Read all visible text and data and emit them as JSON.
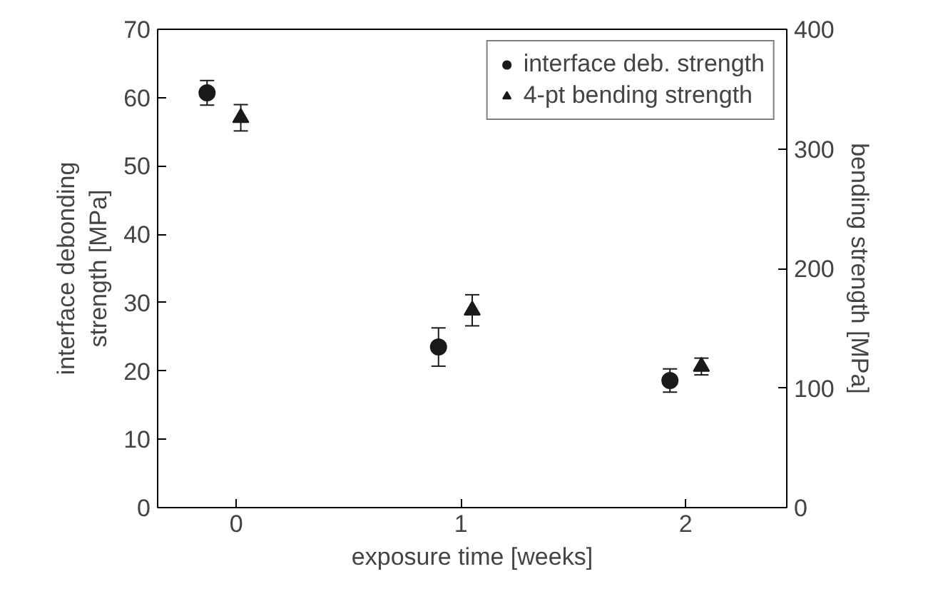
{
  "chart_data": {
    "type": "scatter",
    "xlabel": "exposure time [weeks]",
    "ylabel": "interface debonding\nstrength [MPa]",
    "y2label": "bending strength [MPa]",
    "xlim": [
      -0.35,
      2.45
    ],
    "xticks": [
      0,
      1,
      2
    ],
    "ylim": [
      0,
      70
    ],
    "yticks": [
      0,
      10,
      20,
      30,
      40,
      50,
      60,
      70
    ],
    "y2lim": [
      0,
      400
    ],
    "y2ticks": [
      0,
      100,
      200,
      300,
      400
    ],
    "legend": "top right",
    "grid": false,
    "series": [
      {
        "name": "interface deb. strength",
        "color": "#1a1a1a",
        "marker": "circle",
        "x": [
          -0.13,
          0.9,
          1.93
        ],
        "values": [
          60.7,
          23.5,
          18.6
        ],
        "errors": [
          1.8,
          2.8,
          1.7
        ]
      },
      {
        "name": "4-pt bending strength",
        "color": "#1a1a1a",
        "marker": "triangle",
        "axis": "y2",
        "x": [
          0.02,
          1.05,
          2.07
        ],
        "values": [
          326,
          165,
          118
        ],
        "errors": [
          11,
          13,
          7
        ]
      }
    ]
  }
}
